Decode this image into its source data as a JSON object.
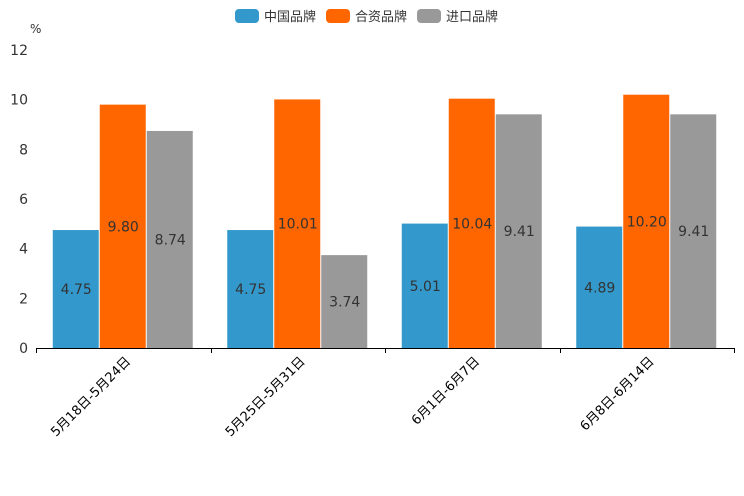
{
  "chart_data": {
    "type": "bar",
    "title": "",
    "xlabel": "",
    "ylabel": "%",
    "ylim": [
      0,
      12
    ],
    "yticks": [
      "0",
      "2",
      "4",
      "6",
      "8",
      "10",
      "12"
    ],
    "grid": false,
    "legend_position": "top-center",
    "categories": [
      "5月18日-5月24日",
      "5月25日-5月31日",
      "6月1日-6月7日",
      "6月8日-6月14日"
    ],
    "series": [
      {
        "name": "中国品牌",
        "color": "#3399cc",
        "values": [
          4.75,
          4.75,
          5.01,
          4.89
        ],
        "labels": [
          "4.75",
          "4.75",
          "5.01",
          "4.89"
        ]
      },
      {
        "name": "合资品牌",
        "color": "#ff6600",
        "values": [
          9.8,
          10.01,
          10.04,
          10.2
        ],
        "labels": [
          "9.80",
          "10.01",
          "10.04",
          "10.20"
        ]
      },
      {
        "name": "进口品牌",
        "color": "#999999",
        "values": [
          8.74,
          3.74,
          9.41,
          9.41
        ],
        "labels": [
          "8.74",
          "3.74",
          "9.41",
          "9.41"
        ]
      }
    ]
  }
}
